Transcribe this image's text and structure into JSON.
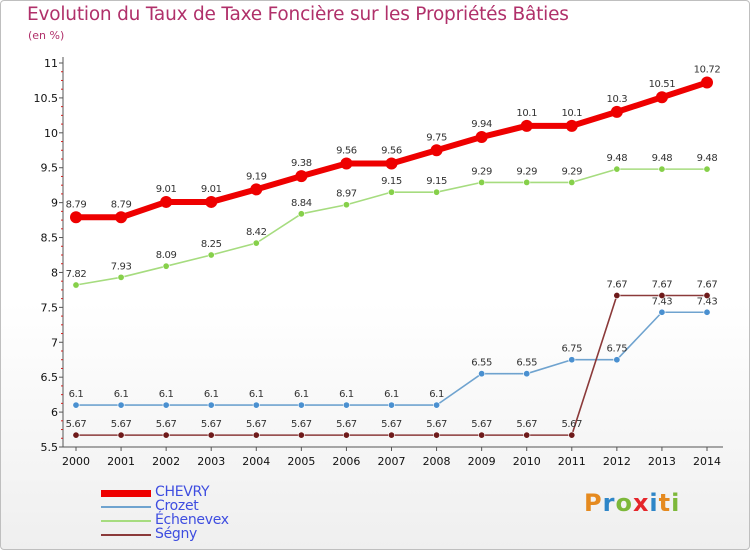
{
  "title": "Evolution du Taux de Taxe Foncière sur les Propriétés Bâties",
  "subtitle": "(en %)",
  "brand": {
    "text": "Proxiti",
    "colors": [
      "#e58a1f",
      "#2e86c8",
      "#7db83a",
      "#e5252a",
      "#2e86c8",
      "#e58a1f",
      "#7db83a"
    ]
  },
  "chart_data": {
    "type": "line",
    "x": [
      "2000",
      "2001",
      "2002",
      "2003",
      "2004",
      "2005",
      "2006",
      "2007",
      "2008",
      "2009",
      "2010",
      "2011",
      "2012",
      "2013",
      "2014"
    ],
    "ylim": [
      5.5,
      11
    ],
    "yticks": [
      "5.5",
      "6",
      "6.5",
      "7",
      "7.5",
      "8",
      "8.5",
      "9",
      "9.5",
      "10",
      "10.5",
      "11"
    ],
    "grid": false,
    "legend_position": "bottom-left",
    "series": [
      {
        "name": "CHEVRY",
        "color": "#ee0000",
        "emphasis": true,
        "values": [
          8.79,
          8.79,
          9.01,
          9.01,
          9.19,
          9.38,
          9.56,
          9.56,
          9.75,
          9.94,
          10.1,
          10.1,
          10.3,
          10.51,
          10.72
        ],
        "labels": [
          "8.79",
          "8.79",
          "9.01",
          "9.01",
          "9.19",
          "9.38",
          "9.56",
          "9.56",
          "9.75",
          "9.94",
          "10.1",
          "10.1",
          "10.3",
          "10.51",
          "10.72"
        ]
      },
      {
        "name": "Crozet",
        "color": "#6fa3cf",
        "point_color": "#4a90d0",
        "values": [
          6.1,
          6.1,
          6.1,
          6.1,
          6.1,
          6.1,
          6.1,
          6.1,
          6.1,
          6.55,
          6.55,
          6.75,
          6.75,
          7.43,
          7.43
        ],
        "labels": [
          "6.1",
          "6.1",
          "6.1",
          "6.1",
          "6.1",
          "6.1",
          "6.1",
          "6.1",
          "6.1",
          "6.55",
          "6.55",
          "6.75",
          "6.75",
          "7.43",
          "7.43"
        ]
      },
      {
        "name": "Échenevex",
        "color": "#a6dc7f",
        "point_color": "#86d04a",
        "values": [
          7.82,
          7.93,
          8.09,
          8.25,
          8.42,
          8.84,
          8.97,
          9.15,
          9.15,
          9.29,
          9.29,
          9.29,
          9.48,
          9.48,
          9.48
        ],
        "labels": [
          "7.82",
          "7.93",
          "8.09",
          "8.25",
          "8.42",
          "8.84",
          "8.97",
          "9.15",
          "9.15",
          "9.29",
          "9.29",
          "9.29",
          "9.48",
          "9.48",
          "9.48"
        ]
      },
      {
        "name": "Ségny",
        "color": "#8b3a3a",
        "point_color": "#6e1a1a",
        "values": [
          5.67,
          5.67,
          5.67,
          5.67,
          5.67,
          5.67,
          5.67,
          5.67,
          5.67,
          5.67,
          5.67,
          5.67,
          7.67,
          7.67,
          7.67
        ],
        "labels": [
          "5.67",
          "5.67",
          "5.67",
          "5.67",
          "5.67",
          "5.67",
          "5.67",
          "5.67",
          "5.67",
          "5.67",
          "5.67",
          "5.67",
          "7.67",
          "7.67",
          "7.67"
        ]
      }
    ]
  }
}
